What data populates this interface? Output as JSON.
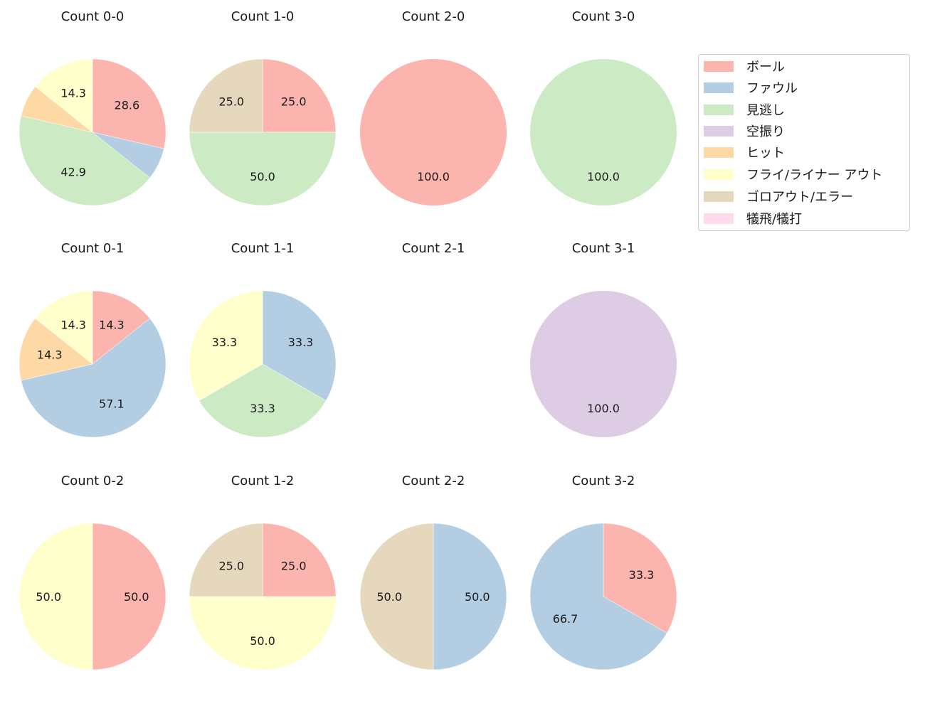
{
  "colors": {
    "ball": "#fbb4ae",
    "foul": "#b3cde3",
    "looking": "#ccebc5",
    "swinging": "#decbe4",
    "hit": "#fed9a6",
    "fly_liner_out": "#ffffcc",
    "ground_out_error": "#e5d8bd",
    "sacrifice": "#fddaec"
  },
  "legend": {
    "items": [
      {
        "key": "ball",
        "label": "ボール",
        "color": "#fbb4ae"
      },
      {
        "key": "foul",
        "label": "ファウル",
        "color": "#b3cde3"
      },
      {
        "key": "looking",
        "label": "見逃し",
        "color": "#ccebc5"
      },
      {
        "key": "swinging",
        "label": "空振り",
        "color": "#decbe4"
      },
      {
        "key": "hit",
        "label": "ヒット",
        "color": "#fed9a6"
      },
      {
        "key": "fly_liner_out",
        "label": "フライ/ライナー アウト",
        "color": "#ffffcc"
      },
      {
        "key": "ground_out_error",
        "label": "ゴロアウト/エラー",
        "color": "#e5d8bd"
      },
      {
        "key": "sacrifice",
        "label": "犠飛/犠打",
        "color": "#fddaec"
      }
    ]
  },
  "chart_data": {
    "type": "pie",
    "start_angle": 90,
    "direction": "clockwise",
    "label_format": "%.1f",
    "categories": [
      "ボール",
      "ファウル",
      "見逃し",
      "空振り",
      "ヒット",
      "フライ/ライナー アウト",
      "ゴロアウト/エラー",
      "犠飛/犠打"
    ],
    "legend_position": "upper right (outside)",
    "subplots": [
      {
        "title": "Count 0-0",
        "row": 0,
        "col": 0,
        "slices": [
          {
            "category": "ボール",
            "value": 28.6,
            "label": "28.6"
          },
          {
            "category": "ファウル",
            "value": 7.1,
            "label": ""
          },
          {
            "category": "見逃し",
            "value": 42.9,
            "label": "42.9"
          },
          {
            "category": "ヒット",
            "value": 7.1,
            "label": ""
          },
          {
            "category": "フライ/ライナー アウト",
            "value": 14.3,
            "label": "14.3"
          }
        ]
      },
      {
        "title": "Count 1-0",
        "row": 0,
        "col": 1,
        "slices": [
          {
            "category": "ボール",
            "value": 25.0,
            "label": "25.0"
          },
          {
            "category": "見逃し",
            "value": 50.0,
            "label": "50.0"
          },
          {
            "category": "ゴロアウト/エラー",
            "value": 25.0,
            "label": "25.0"
          }
        ]
      },
      {
        "title": "Count 2-0",
        "row": 0,
        "col": 2,
        "slices": [
          {
            "category": "ボール",
            "value": 100.0,
            "label": "100.0"
          }
        ]
      },
      {
        "title": "Count 3-0",
        "row": 0,
        "col": 3,
        "slices": [
          {
            "category": "見逃し",
            "value": 100.0,
            "label": "100.0"
          }
        ]
      },
      {
        "title": "Count 0-1",
        "row": 1,
        "col": 0,
        "slices": [
          {
            "category": "ボール",
            "value": 14.3,
            "label": "14.3"
          },
          {
            "category": "ファウル",
            "value": 57.1,
            "label": "57.1"
          },
          {
            "category": "ヒット",
            "value": 14.3,
            "label": "14.3"
          },
          {
            "category": "フライ/ライナー アウト",
            "value": 14.3,
            "label": "14.3"
          }
        ]
      },
      {
        "title": "Count 1-1",
        "row": 1,
        "col": 1,
        "slices": [
          {
            "category": "ファウル",
            "value": 33.3,
            "label": "33.3"
          },
          {
            "category": "見逃し",
            "value": 33.3,
            "label": "33.3"
          },
          {
            "category": "フライ/ライナー アウト",
            "value": 33.3,
            "label": "33.3"
          }
        ]
      },
      {
        "title": "Count 2-1",
        "row": 1,
        "col": 2,
        "slices": []
      },
      {
        "title": "Count 3-1",
        "row": 1,
        "col": 3,
        "slices": [
          {
            "category": "空振り",
            "value": 100.0,
            "label": "100.0"
          }
        ]
      },
      {
        "title": "Count 0-2",
        "row": 2,
        "col": 0,
        "slices": [
          {
            "category": "ボール",
            "value": 50.0,
            "label": "50.0"
          },
          {
            "category": "フライ/ライナー アウト",
            "value": 50.0,
            "label": "50.0"
          }
        ]
      },
      {
        "title": "Count 1-2",
        "row": 2,
        "col": 1,
        "slices": [
          {
            "category": "ボール",
            "value": 25.0,
            "label": "25.0"
          },
          {
            "category": "フライ/ライナー アウト",
            "value": 50.0,
            "label": "50.0"
          },
          {
            "category": "ゴロアウト/エラー",
            "value": 25.0,
            "label": "25.0"
          }
        ]
      },
      {
        "title": "Count 2-2",
        "row": 2,
        "col": 2,
        "slices": [
          {
            "category": "ファウル",
            "value": 50.0,
            "label": "50.0"
          },
          {
            "category": "ゴロアウト/エラー",
            "value": 50.0,
            "label": "50.0"
          }
        ]
      },
      {
        "title": "Count 3-2",
        "row": 2,
        "col": 3,
        "slices": [
          {
            "category": "ボール",
            "value": 33.3,
            "label": "33.3"
          },
          {
            "category": "ファウル",
            "value": 66.7,
            "label": "66.7"
          }
        ]
      }
    ]
  }
}
